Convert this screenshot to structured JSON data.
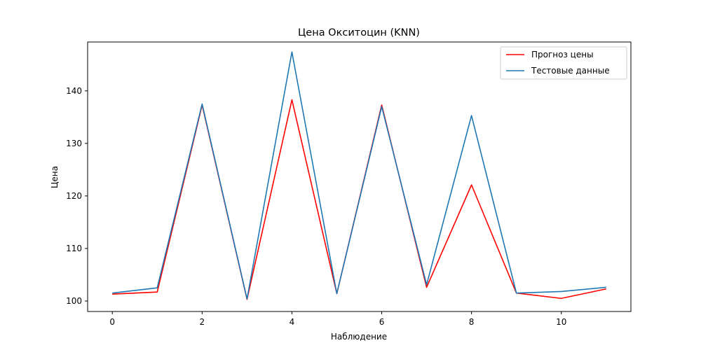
{
  "chart_data": {
    "type": "line",
    "title": "Цена Окситоцин  (KNN)",
    "xlabel": "Наблюдение",
    "ylabel": "Цена",
    "x": [
      0,
      1,
      2,
      3,
      4,
      5,
      6,
      7,
      8,
      9,
      10,
      11
    ],
    "xlim": [
      -0.55,
      11.55
    ],
    "ylim": [
      98.0,
      149.3
    ],
    "xticks": [
      0,
      2,
      4,
      6,
      8,
      10
    ],
    "yticks": [
      100,
      110,
      120,
      130,
      140
    ],
    "grid": false,
    "legend_position": "top-right",
    "series": [
      {
        "name": "Прогноз цены",
        "color": "#ff0000",
        "values": [
          101.3,
          101.7,
          137.3,
          100.3,
          138.3,
          101.4,
          137.3,
          102.6,
          122.1,
          101.5,
          100.5,
          102.3
        ]
      },
      {
        "name": "Тестовые данные",
        "color": "#1f77b4",
        "values": [
          101.5,
          102.5,
          137.5,
          100.4,
          147.4,
          101.4,
          137.0,
          103.1,
          135.3,
          101.5,
          101.8,
          102.6
        ]
      }
    ]
  }
}
